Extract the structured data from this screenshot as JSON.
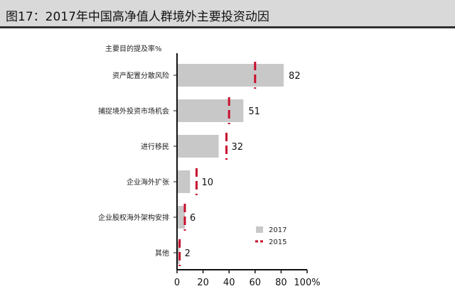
{
  "header": {
    "title": "图17：2017年中国高净值人群境外主要投资动因"
  },
  "chart_data": {
    "type": "bar",
    "orientation": "horizontal",
    "title": "图17：2017年中国高净值人群境外主要投资动因",
    "ylabel": "主要目的提及率%",
    "categories": [
      "资产配置分散风险",
      "捕捉境外投资市场机会",
      "进行移民",
      "企业海外扩张",
      "企业股权海外架构安排",
      "其他"
    ],
    "series": [
      {
        "name": "2017",
        "type": "bar",
        "color": "#c8c8c8",
        "values": [
          82,
          51,
          32,
          10,
          6,
          2
        ]
      },
      {
        "name": "2015",
        "type": "marker",
        "color": "#c8102e",
        "values": [
          60,
          40,
          38,
          15,
          6,
          2
        ]
      }
    ],
    "data_labels": [
      "82",
      "51",
      "32",
      "10",
      "6",
      "2"
    ],
    "xlim": [
      0,
      100
    ],
    "xticks": [
      "0",
      "20",
      "40",
      "60",
      "80",
      "100%"
    ],
    "grid": false,
    "legend_position": "bottom-right"
  }
}
